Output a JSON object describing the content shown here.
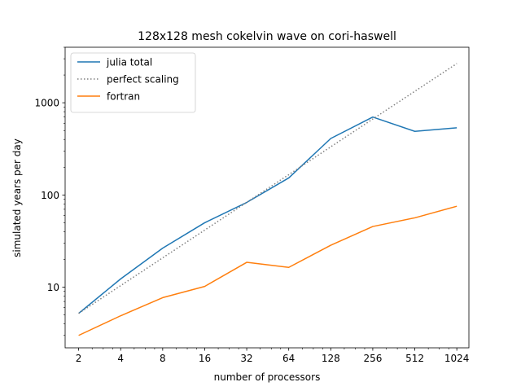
{
  "chart_data": {
    "type": "line",
    "title": "128x128 mesh cokelvin wave on cori-haswell",
    "xlabel": "number of processors",
    "ylabel": "simulated years per day",
    "xscale": "log2",
    "yscale": "log10",
    "xlim": [
      1.6,
      1250
    ],
    "ylim": [
      2.2,
      4000
    ],
    "x_ticks": [
      2,
      4,
      8,
      16,
      32,
      64,
      128,
      256,
      512,
      1024
    ],
    "x_tick_labels": [
      "2",
      "4",
      "8",
      "16",
      "32",
      "64",
      "128",
      "256",
      "512",
      "1024"
    ],
    "y_ticks": [
      10,
      100,
      1000
    ],
    "y_tick_labels": [
      "10",
      "100",
      "1000"
    ],
    "grid": false,
    "legend_position": "upper-left",
    "x": [
      2,
      4,
      8,
      16,
      32,
      64,
      128,
      256,
      512,
      1024
    ],
    "series": [
      {
        "name": "julia total",
        "color": "#1f77b4",
        "style": "solid",
        "values": [
          5.2,
          12.3,
          26.5,
          50,
          83,
          153,
          410,
          700,
          490,
          535
        ]
      },
      {
        "name": "perfect scaling",
        "color": "#808080",
        "style": "dotted",
        "values": [
          5.2,
          10.4,
          20.8,
          41.6,
          83.2,
          166,
          333,
          666,
          1331,
          2662
        ]
      },
      {
        "name": "fortran",
        "color": "#ff7f0e",
        "style": "solid",
        "values": [
          3.0,
          4.9,
          7.7,
          10.2,
          18.6,
          16.4,
          28.5,
          45.5,
          56.5,
          75.5
        ]
      }
    ]
  }
}
